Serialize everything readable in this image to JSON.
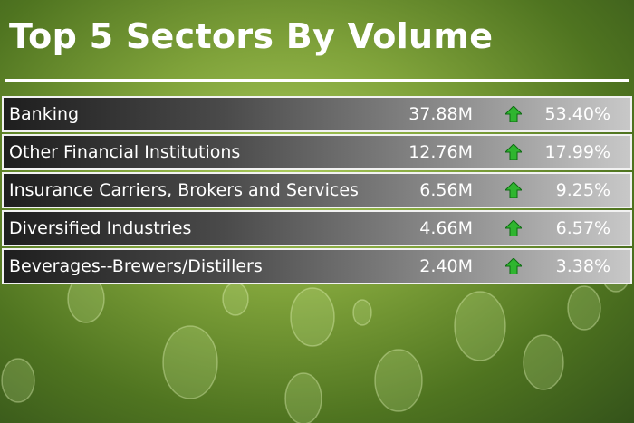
{
  "title": "Top 5 Sectors By Volume",
  "rows": [
    {
      "sector": "Banking",
      "volume": "37.88M",
      "share": "53.40%"
    },
    {
      "sector": "Other Financial Institutions",
      "volume": "12.76M",
      "share": "17.99%"
    },
    {
      "sector": "Insurance Carriers, Brokers and Services",
      "volume": "6.56M",
      "share": "9.25%"
    },
    {
      "sector": "Diversified Industries",
      "volume": "4.66M",
      "share": "6.57%"
    },
    {
      "sector": "Beverages--Brewers/Distillers",
      "volume": "2.40M",
      "share": "3.38%"
    }
  ]
}
